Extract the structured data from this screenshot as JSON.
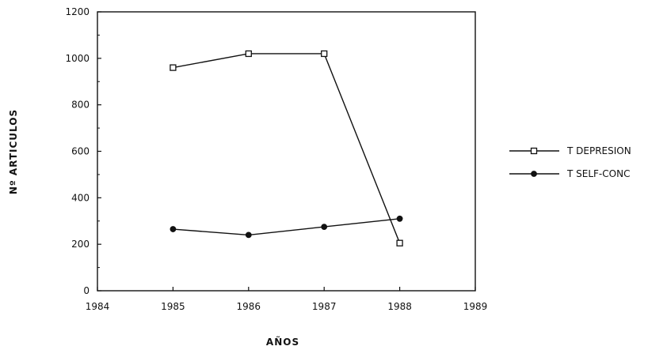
{
  "chart_data": {
    "type": "line",
    "xlabel": "AÑOS",
    "ylabel": "Nº ARTICULOS",
    "xlim": [
      1984,
      1989
    ],
    "ylim": [
      0,
      1200
    ],
    "x_ticks": [
      "1984",
      "1985",
      "1986",
      "1987",
      "1988",
      "1989"
    ],
    "y_ticks": [
      "0",
      "200",
      "400",
      "600",
      "800",
      "1000",
      "1200"
    ],
    "legend_position": "right",
    "grid": false,
    "series": [
      {
        "name": "T DEPRESION",
        "marker": "open-square",
        "x": [
          1985,
          1986,
          1987,
          1988
        ],
        "values": [
          960,
          1020,
          1020,
          205
        ]
      },
      {
        "name": "T SELF-CONC",
        "marker": "filled-circle",
        "x": [
          1985,
          1986,
          1987,
          1988
        ],
        "values": [
          265,
          240,
          275,
          310
        ]
      }
    ]
  }
}
